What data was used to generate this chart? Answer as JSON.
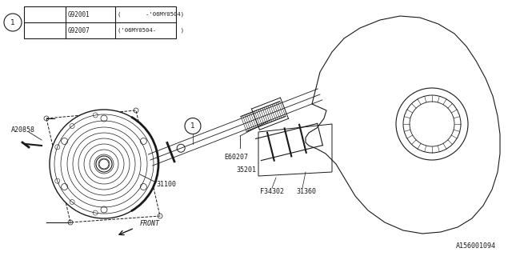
{
  "bg_color": "#ffffff",
  "line_color": "#1a1a1a",
  "legend_rows": [
    {
      "code": "G92001",
      "desc": "(       -'06MY0504)"
    },
    {
      "code": "G92007",
      "desc": "('06MY0504-       )"
    }
  ],
  "diagram_id": "A156001094"
}
